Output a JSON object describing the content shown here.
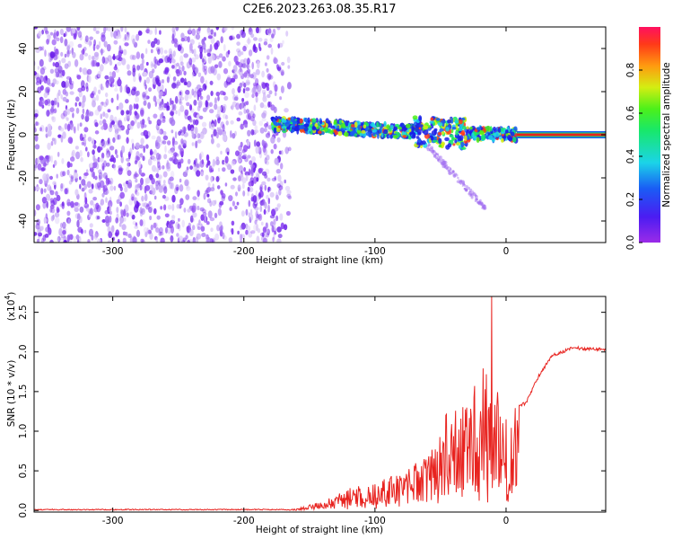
{
  "title": "C2E6.2023.263.08.35.R17",
  "colors": {
    "frame": "#000000",
    "snr_line": "#e8231f",
    "noise_purple": "#7a2cf0",
    "stable_band": "#e8231f"
  },
  "chart_data": [
    {
      "type": "heatmap",
      "xlabel": "Height of straight line (km)",
      "ylabel": "Frequency (Hz)",
      "xlim": [
        -360,
        76
      ],
      "ylim": [
        -50,
        50
      ],
      "xticks": [
        -300,
        -200,
        -100,
        0
      ],
      "yticks": [
        -40,
        -20,
        0,
        20,
        40
      ],
      "grid": false,
      "colormap": "rainbow (purple → blue → cyan → green → yellow → red)",
      "colorbar": {
        "label": "Normalized spectral amplitude",
        "range": [
          0,
          1
        ],
        "ticks": [
          0.0,
          0.2,
          0.4,
          0.6,
          0.8
        ],
        "placement": "right"
      },
      "features": {
        "noise_region_x": [
          -360,
          -170
        ],
        "signal_track": [
          {
            "x": -178,
            "freq": 5
          },
          {
            "x": -150,
            "freq": 4
          },
          {
            "x": -120,
            "freq": 3
          },
          {
            "x": -90,
            "freq": 2
          },
          {
            "x": -60,
            "freq": 1
          },
          {
            "x": -30,
            "freq": 0.5
          },
          {
            "x": 0,
            "freq": 0
          },
          {
            "x": 76,
            "freq": 0
          }
        ],
        "stable_band_x": [
          8,
          76
        ],
        "stable_band_freq": 0
      }
    },
    {
      "type": "line",
      "xlabel": "Height of straight line (km)",
      "ylabel": "SNR (10 * v/v)",
      "y_multiplier_label": "(x10",
      "y_multiplier_exp": "4",
      "xlim": [
        -360,
        76
      ],
      "ylim": [
        -0.02,
        2.7
      ],
      "xticks": [
        -300,
        -200,
        -100,
        0
      ],
      "yticks": [
        0.0,
        0.5,
        1.0,
        1.5,
        2.0,
        2.5
      ],
      "grid": false,
      "series": [
        {
          "envelope": [
            {
              "x": -360,
              "y": 0.0
            },
            {
              "x": -160,
              "y": 0.02
            },
            {
              "x": -140,
              "y": 0.12
            },
            {
              "x": -120,
              "y": 0.28
            },
            {
              "x": -100,
              "y": 0.35
            },
            {
              "x": -80,
              "y": 0.5
            },
            {
              "x": -60,
              "y": 0.7
            },
            {
              "x": -45,
              "y": 1.25
            },
            {
              "x": -30,
              "y": 1.4
            },
            {
              "x": -15,
              "y": 1.9
            },
            {
              "x": 0,
              "y": 1.3
            },
            {
              "x": 15,
              "y": 1.35
            },
            {
              "x": 25,
              "y": 1.7
            },
            {
              "x": 35,
              "y": 1.95
            },
            {
              "x": 50,
              "y": 2.05
            },
            {
              "x": 76,
              "y": 2.03
            }
          ],
          "peak": {
            "x": -11,
            "y": 2.7
          }
        }
      ]
    }
  ]
}
